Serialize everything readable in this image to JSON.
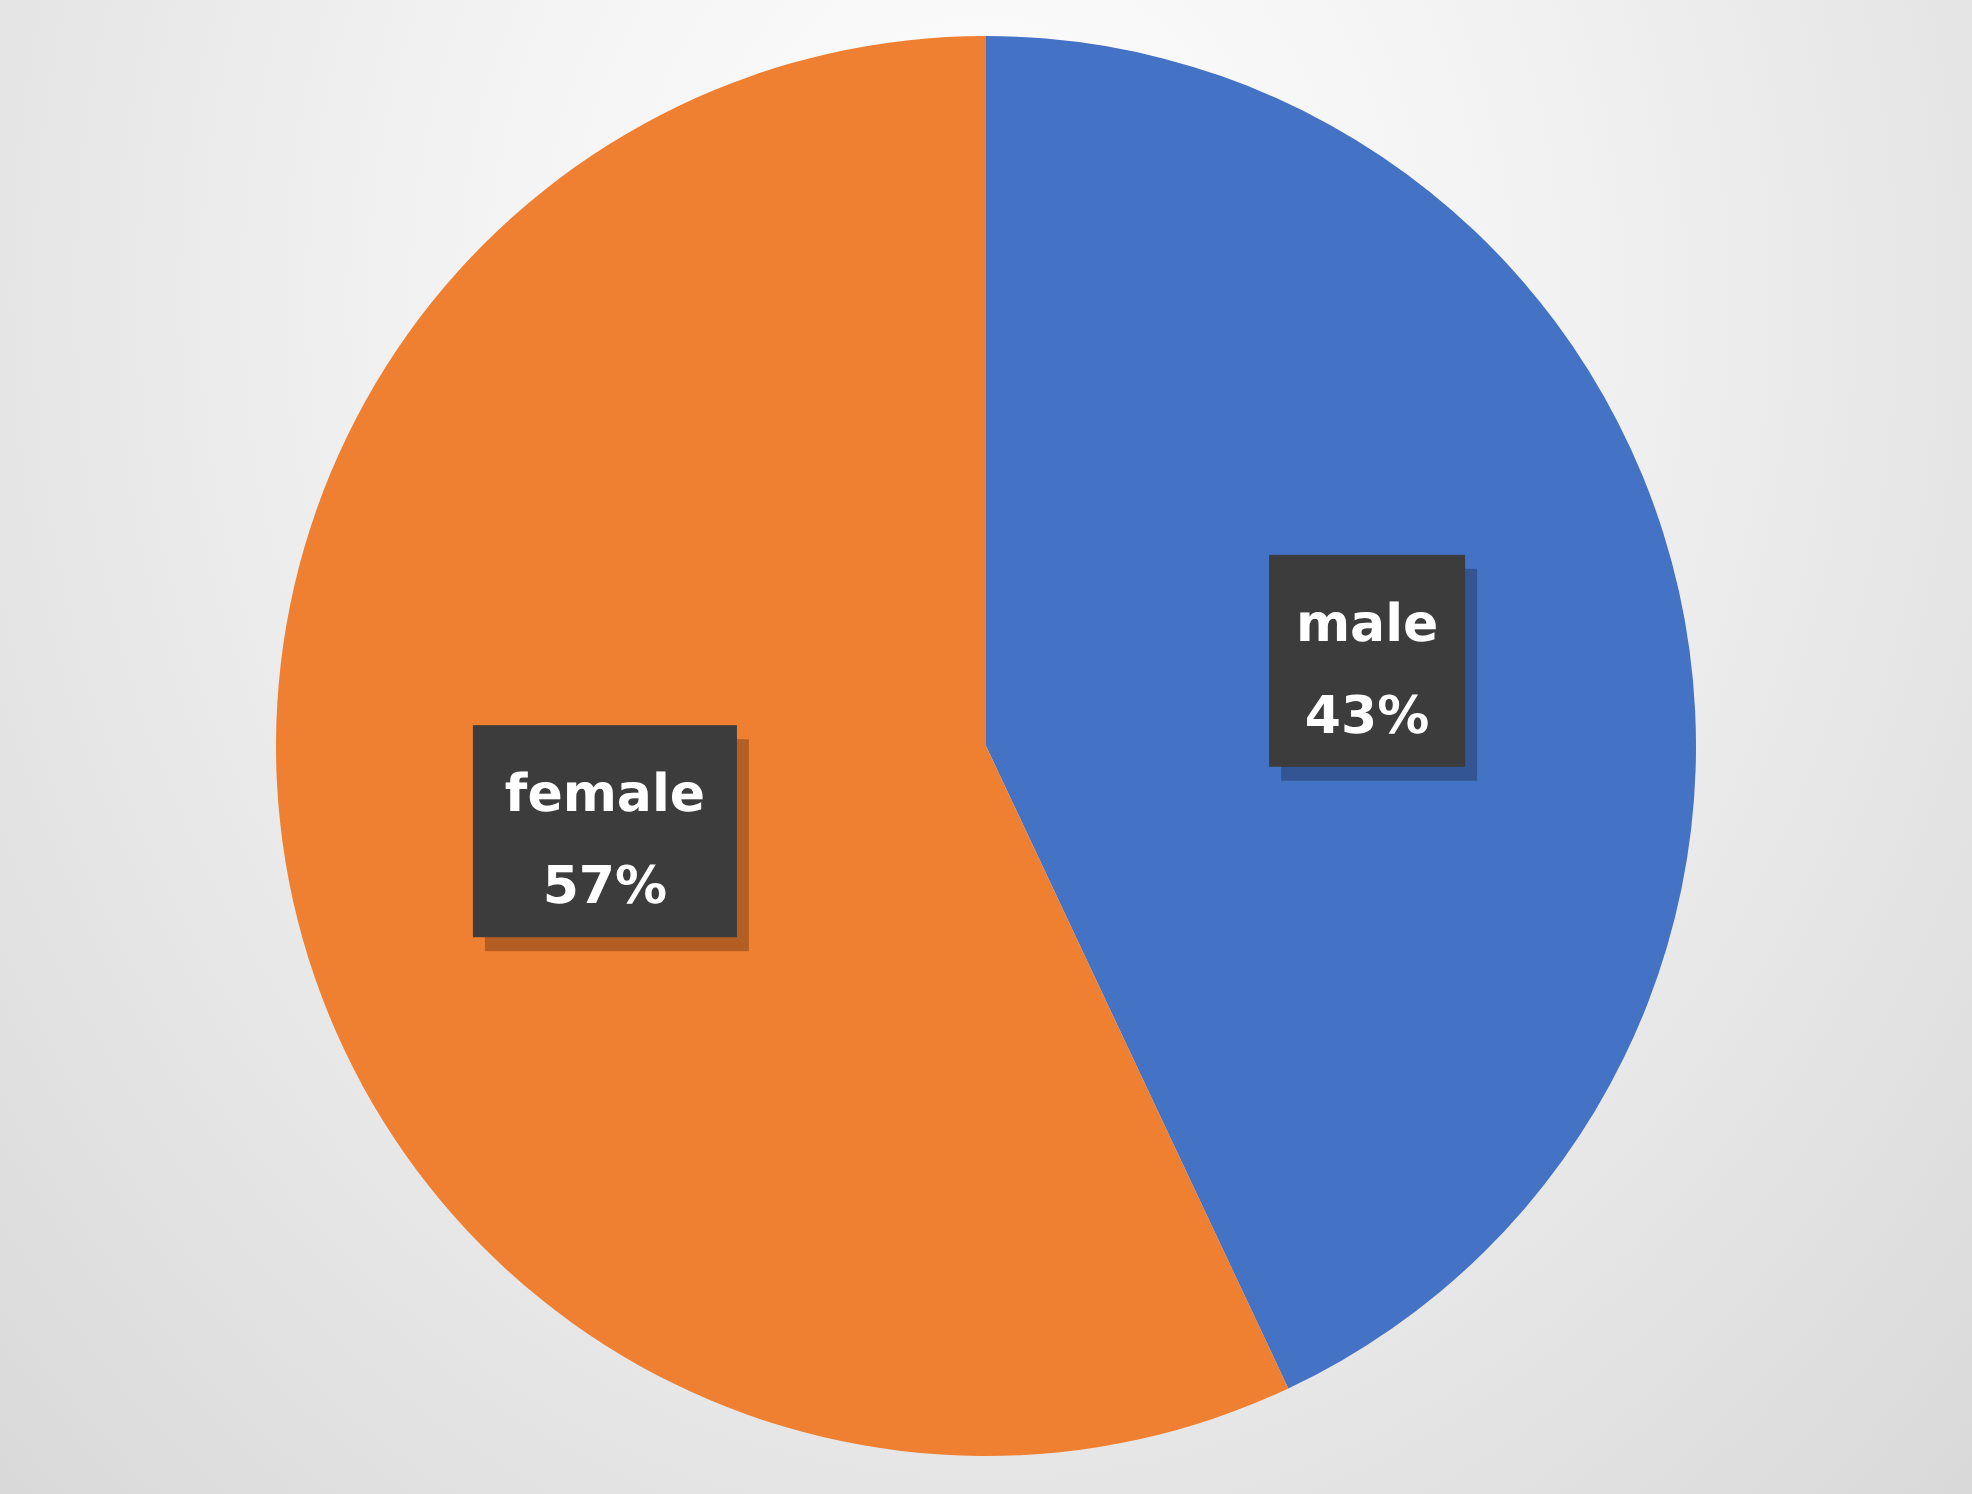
{
  "chart_data": {
    "type": "pie",
    "categories": [
      "male",
      "female"
    ],
    "values": [
      43,
      57
    ],
    "colors": [
      "#4472c4",
      "#ef7f31"
    ],
    "value_labels": [
      "43%",
      "57%"
    ]
  }
}
